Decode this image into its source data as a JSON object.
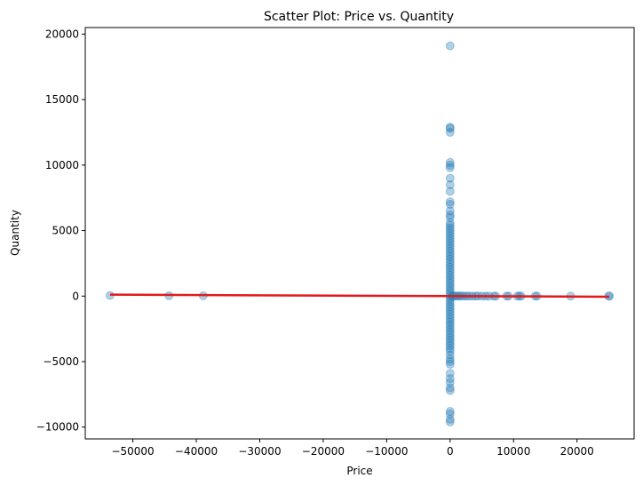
{
  "chart_data": {
    "type": "scatter",
    "title": "Scatter Plot: Price vs. Quantity",
    "xlabel": "Price",
    "ylabel": "Quantity",
    "xlim": [
      -57500,
      29000
    ],
    "ylim": [
      -10900,
      20500
    ],
    "xticks": [
      -50000,
      -40000,
      -30000,
      -20000,
      -10000,
      0,
      10000,
      20000
    ],
    "xtick_labels": [
      "−50000",
      "−40000",
      "−30000",
      "−20000",
      "−10000",
      "0",
      "10000",
      "20000"
    ],
    "yticks": [
      -10000,
      -5000,
      0,
      5000,
      10000,
      15000,
      20000
    ],
    "ytick_labels": [
      "−10000",
      "−5000",
      "0",
      "5000",
      "10000",
      "15000",
      "20000"
    ],
    "grid": false,
    "series": [
      {
        "marker_color": "#1f77b4",
        "opacity": 0.35,
        "points": [
          [
            -53600,
            50
          ],
          [
            -44300,
            30
          ],
          [
            -38900,
            30
          ],
          [
            0,
            19100
          ],
          [
            0,
            12900
          ],
          [
            0,
            12800
          ],
          [
            0,
            12500
          ],
          [
            0,
            10200
          ],
          [
            0,
            10000
          ],
          [
            0,
            9800
          ],
          [
            0,
            9000
          ],
          [
            0,
            8500
          ],
          [
            0,
            8000
          ],
          [
            0,
            7200
          ],
          [
            0,
            7000
          ],
          [
            0,
            6500
          ],
          [
            0,
            6200
          ],
          [
            0,
            6000
          ],
          [
            0,
            5600
          ],
          [
            0,
            5400
          ],
          [
            0,
            5200
          ],
          [
            0,
            5000
          ],
          [
            0,
            4800
          ],
          [
            0,
            4600
          ],
          [
            0,
            4400
          ],
          [
            0,
            4200
          ],
          [
            0,
            4000
          ],
          [
            0,
            3800
          ],
          [
            0,
            3600
          ],
          [
            0,
            3400
          ],
          [
            0,
            3200
          ],
          [
            0,
            3000
          ],
          [
            0,
            2800
          ],
          [
            0,
            2600
          ],
          [
            0,
            2400
          ],
          [
            0,
            2200
          ],
          [
            0,
            2000
          ],
          [
            0,
            1800
          ],
          [
            0,
            1600
          ],
          [
            0,
            1400
          ],
          [
            0,
            1200
          ],
          [
            0,
            1000
          ],
          [
            0,
            800
          ],
          [
            0,
            600
          ],
          [
            0,
            400
          ],
          [
            0,
            200
          ],
          [
            0,
            0
          ],
          [
            0,
            -200
          ],
          [
            0,
            -400
          ],
          [
            0,
            -600
          ],
          [
            0,
            -800
          ],
          [
            0,
            -1000
          ],
          [
            0,
            -1200
          ],
          [
            0,
            -1400
          ],
          [
            0,
            -1600
          ],
          [
            0,
            -1800
          ],
          [
            0,
            -2000
          ],
          [
            0,
            -2200
          ],
          [
            0,
            -2400
          ],
          [
            0,
            -2600
          ],
          [
            0,
            -2800
          ],
          [
            0,
            -3000
          ],
          [
            0,
            -3200
          ],
          [
            0,
            -3400
          ],
          [
            0,
            -3600
          ],
          [
            0,
            -3800
          ],
          [
            0,
            -4000
          ],
          [
            0,
            -4200
          ],
          [
            0,
            -4500
          ],
          [
            0,
            -4800
          ],
          [
            0,
            -5000
          ],
          [
            0,
            -5200
          ],
          [
            0,
            -5900
          ],
          [
            0,
            -6300
          ],
          [
            0,
            -6600
          ],
          [
            0,
            -7000
          ],
          [
            0,
            -7200
          ],
          [
            0,
            -8800
          ],
          [
            0,
            -9000
          ],
          [
            0,
            -9400
          ],
          [
            0,
            -9600
          ],
          [
            300,
            0
          ],
          [
            600,
            20
          ],
          [
            900,
            0
          ],
          [
            1200,
            10
          ],
          [
            1500,
            0
          ],
          [
            1800,
            15
          ],
          [
            2200,
            0
          ],
          [
            2600,
            10
          ],
          [
            3000,
            0
          ],
          [
            3500,
            5
          ],
          [
            4000,
            0
          ],
          [
            4400,
            10
          ],
          [
            5000,
            0
          ],
          [
            5600,
            0
          ],
          [
            6100,
            5
          ],
          [
            6900,
            0
          ],
          [
            7200,
            0
          ],
          [
            8900,
            5
          ],
          [
            9200,
            0
          ],
          [
            10600,
            0
          ],
          [
            10900,
            10
          ],
          [
            11200,
            0
          ],
          [
            13400,
            5
          ],
          [
            13700,
            0
          ],
          [
            19000,
            0
          ],
          [
            25000,
            5
          ],
          [
            25100,
            0
          ]
        ]
      }
    ],
    "trend_line": {
      "color": "#e31a1c",
      "x": [
        -53600,
        25100
      ],
      "y": [
        110,
        -50
      ]
    }
  }
}
